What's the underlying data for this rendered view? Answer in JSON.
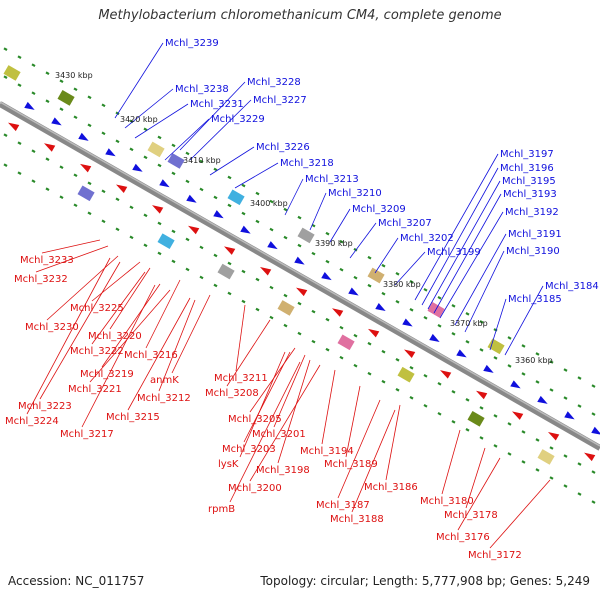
{
  "title": "Methylobacterium chloromethanicum CM4, complete genome",
  "accession": "Accession: NC_011757",
  "summary": "Topology: circular; Length: 5,777,908 bp; Genes: 5,249",
  "colors": {
    "forward": "#1010dd",
    "reverse": "#dd1010",
    "backbone": "#888888",
    "tick": "#2a8a2a"
  },
  "kbp_ticks": [
    "3430 kbp",
    "3420 kbp",
    "3410 kbp",
    "3400 kbp",
    "3390 kbp",
    "3380 kbp",
    "3370 kbp",
    "3360 kbp"
  ],
  "upper_labels": [
    "Mchl_3239",
    "Mchl_3238",
    "Mchl_3231",
    "Mchl_3228",
    "Mchl_3227",
    "Mchl_3229",
    "Mchl_3226",
    "Mchl_3218",
    "Mchl_3213",
    "Mchl_3210",
    "Mchl_3209",
    "Mchl_3207",
    "Mchl_3202",
    "Mchl_3199",
    "Mchl_3197",
    "Mchl_3196",
    "Mchl_3195",
    "Mchl_3193",
    "Mchl_3192",
    "Mchl_3191",
    "Mchl_3190",
    "Mchl_3184",
    "Mchl_3185"
  ],
  "lower_labels": [
    "Mchl_3233",
    "Mchl_3232",
    "Mchl_3225",
    "Mchl_3230",
    "Mchl_3220",
    "Mchl_3222",
    "Mchl_3216",
    "Mchl_3219",
    "anmK",
    "Mchl_3211",
    "Mchl_3221",
    "Mchl_3212",
    "Mchl_3208",
    "Mchl_3223",
    "Mchl_3215",
    "Mchl_3224",
    "Mchl_3217",
    "Mchl_3205",
    "Mchl_3201",
    "Mchl_3203",
    "lysK",
    "Mchl_3194",
    "Mchl_3198",
    "Mchl_3189",
    "Mchl_3200",
    "Mchl_3186",
    "Mchl_3180",
    "rpmB",
    "Mchl_3187",
    "Mchl_3188",
    "Mchl_3178",
    "Mchl_3176",
    "Mchl_3172"
  ]
}
